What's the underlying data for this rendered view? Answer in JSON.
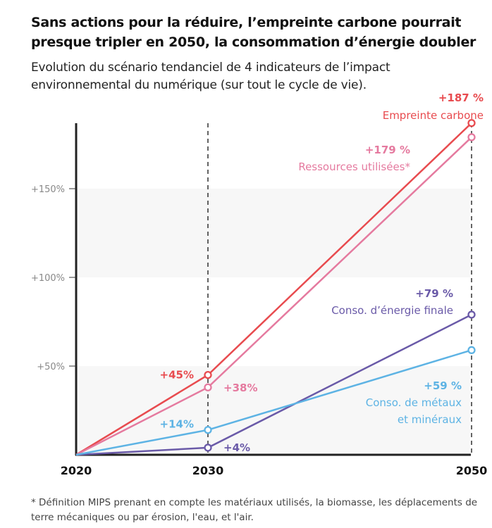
{
  "header": {
    "title": "Sans actions pour la réduire, l’empreinte carbone pourrait presque tripler en 2050, la consommation d’énergie doubler",
    "subtitle": "Evolution du scénario tendanciel de 4 indicateurs de l’impact environnemental du numérique (sur tout le cycle de vie)."
  },
  "footnote": "* Définition MIPS prenant en compte les matériaux utilisés, la biomasse, les déplacements de terre mécaniques ou par érosion, l'eau, et l'air.",
  "chart_data": {
    "type": "line",
    "x": [
      2020,
      2030,
      2050
    ],
    "x_tick_labels": [
      "2020",
      "2030",
      "2050"
    ],
    "y_tick_labels": [
      "+50%",
      "+100%",
      "+150%"
    ],
    "y_ticks": [
      50,
      100,
      150
    ],
    "ylim": [
      0,
      187
    ],
    "grid": "alternating bands",
    "series": [
      {
        "name": "Empreinte carbone",
        "color": "#e84b4f",
        "values": [
          0,
          45,
          187
        ],
        "labels": [
          "",
          "+45%",
          "+187 %"
        ]
      },
      {
        "name": "Ressources utilisées*",
        "color": "#e57a9f",
        "values": [
          0,
          38,
          179
        ],
        "labels": [
          "",
          "+38%",
          "+179 %"
        ]
      },
      {
        "name": "Conso. d’énergie finale",
        "color": "#6a5aa8",
        "values": [
          0,
          4,
          79
        ],
        "labels": [
          "",
          "+4%",
          "+79 %"
        ]
      },
      {
        "name": "Conso. de métaux et minéraux",
        "name_lines": [
          "Conso. de métaux",
          "et minéraux"
        ],
        "color": "#5db3e4",
        "values": [
          0,
          14,
          59
        ],
        "labels": [
          "",
          "+14%",
          "+59 %"
        ]
      }
    ]
  }
}
